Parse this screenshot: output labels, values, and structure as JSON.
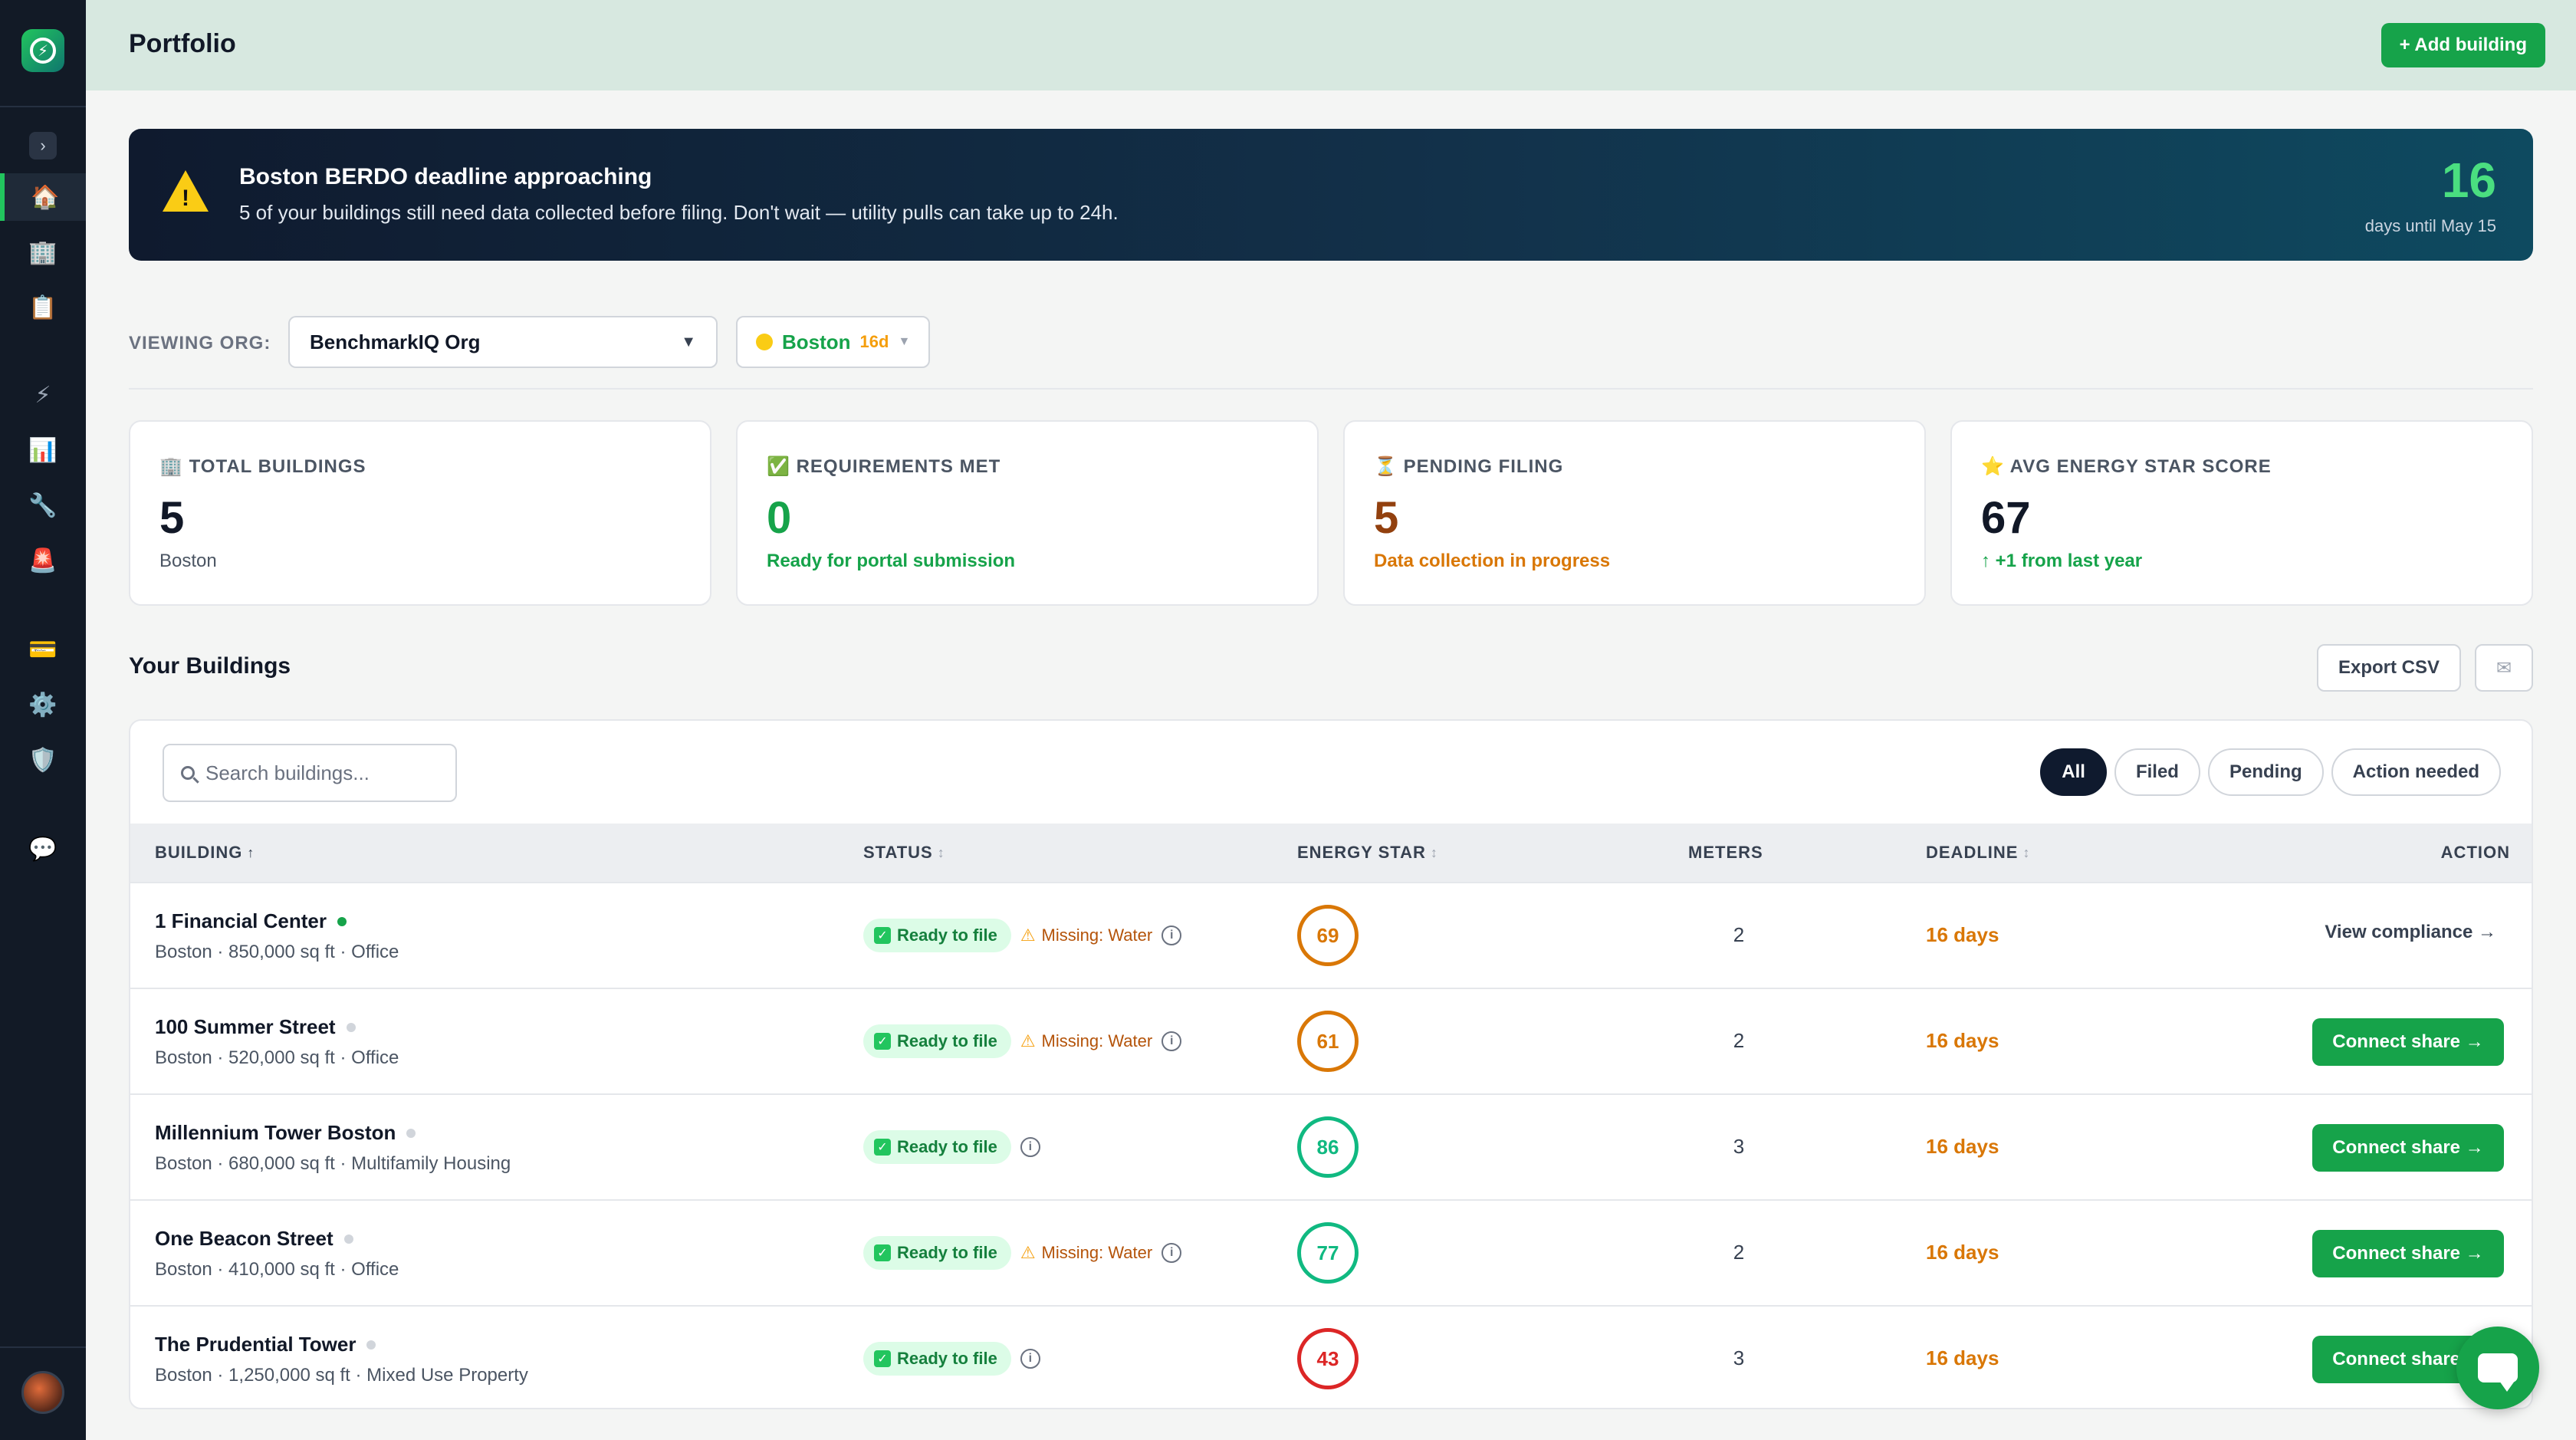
{
  "sidebar": {
    "collapse_icon": "›",
    "items": [
      {
        "name": "home",
        "icon": "🏠"
      },
      {
        "name": "buildings",
        "icon": "🏢"
      },
      {
        "name": "reports",
        "icon": "📋"
      },
      {
        "name": "energy",
        "icon": "⚡"
      },
      {
        "name": "analytics",
        "icon": "📊"
      },
      {
        "name": "tools",
        "icon": "🔧"
      },
      {
        "name": "alerts",
        "icon": "🚨"
      },
      {
        "name": "billing",
        "icon": "💳"
      },
      {
        "name": "settings",
        "icon": "⚙️"
      },
      {
        "name": "security",
        "icon": "🛡️"
      },
      {
        "name": "messages",
        "icon": "💬"
      }
    ]
  },
  "header": {
    "title": "Portfolio",
    "add_button": "+ Add building"
  },
  "banner": {
    "title": "Boston BERDO deadline approaching",
    "text": "5 of your buildings still need data collected before filing. Don't wait — utility pulls can take up to 24h.",
    "days": "16",
    "days_label": "days until May 15"
  },
  "org": {
    "label": "VIEWING ORG:",
    "selected": "BenchmarkIQ Org",
    "region": "Boston",
    "region_days": "16d"
  },
  "stats": [
    {
      "icon": "🏢",
      "label": "TOTAL BUILDINGS",
      "value": "5",
      "sub": "Boston",
      "value_color": "#111827",
      "sub_color": "#4b5563"
    },
    {
      "icon": "✅",
      "label": "REQUIREMENTS MET",
      "value": "0",
      "sub": "Ready for portal submission",
      "value_color": "#16a34a",
      "sub_color": "#16a34a"
    },
    {
      "icon": "⏳",
      "label": "PENDING FILING",
      "value": "5",
      "sub": "Data collection in progress",
      "value_color": "#92400e",
      "sub_color": "#d97706"
    },
    {
      "icon": "⭐",
      "label": "AVG ENERGY STAR SCORE",
      "value": "67",
      "sub": "↑ +1 from last year",
      "value_color": "#111827",
      "sub_color": "#16a34a"
    }
  ],
  "buildings_section": {
    "title": "Your Buildings",
    "export": "Export CSV",
    "mail_icon": "✉"
  },
  "table": {
    "search_placeholder": "Search buildings...",
    "filters": [
      "All",
      "Filed",
      "Pending",
      "Action needed"
    ],
    "headers": {
      "building": "BUILDING",
      "status": "STATUS",
      "energy_star": "ENERGY STAR",
      "meters": "METERS",
      "deadline": "DEADLINE",
      "action": "ACTION"
    },
    "rows": [
      {
        "name": "1 Financial Center",
        "live": true,
        "meta": "Boston · 850,000 sq ft · Office",
        "status": "Ready to file",
        "missing": "Missing: Water",
        "score": "69",
        "score_color": "#d97706",
        "meters": "2",
        "deadline": "16 days",
        "action": "View compliance →",
        "action_type": "link"
      },
      {
        "name": "100 Summer Street",
        "live": false,
        "meta": "Boston · 520,000 sq ft · Office",
        "status": "Ready to file",
        "missing": "Missing: Water",
        "score": "61",
        "score_color": "#d97706",
        "meters": "2",
        "deadline": "16 days",
        "action": "Connect share →",
        "action_type": "button"
      },
      {
        "name": "Millennium Tower Boston",
        "live": false,
        "meta": "Boston · 680,000 sq ft · Multifamily Housing",
        "status": "Ready to file",
        "missing": "",
        "score": "86",
        "score_color": "#10b981",
        "meters": "3",
        "deadline": "16 days",
        "action": "Connect share →",
        "action_type": "button"
      },
      {
        "name": "One Beacon Street",
        "live": false,
        "meta": "Boston · 410,000 sq ft · Office",
        "status": "Ready to file",
        "missing": "Missing: Water",
        "score": "77",
        "score_color": "#10b981",
        "meters": "2",
        "deadline": "16 days",
        "action": "Connect share →",
        "action_type": "button"
      },
      {
        "name": "The Prudential Tower",
        "live": false,
        "meta": "Boston · 1,250,000 sq ft · Mixed Use Property",
        "status": "Ready to file",
        "missing": "",
        "score": "43",
        "score_color": "#dc2626",
        "meters": "3",
        "deadline": "16 days",
        "action": "Connect share →",
        "action_type": "button"
      }
    ]
  }
}
